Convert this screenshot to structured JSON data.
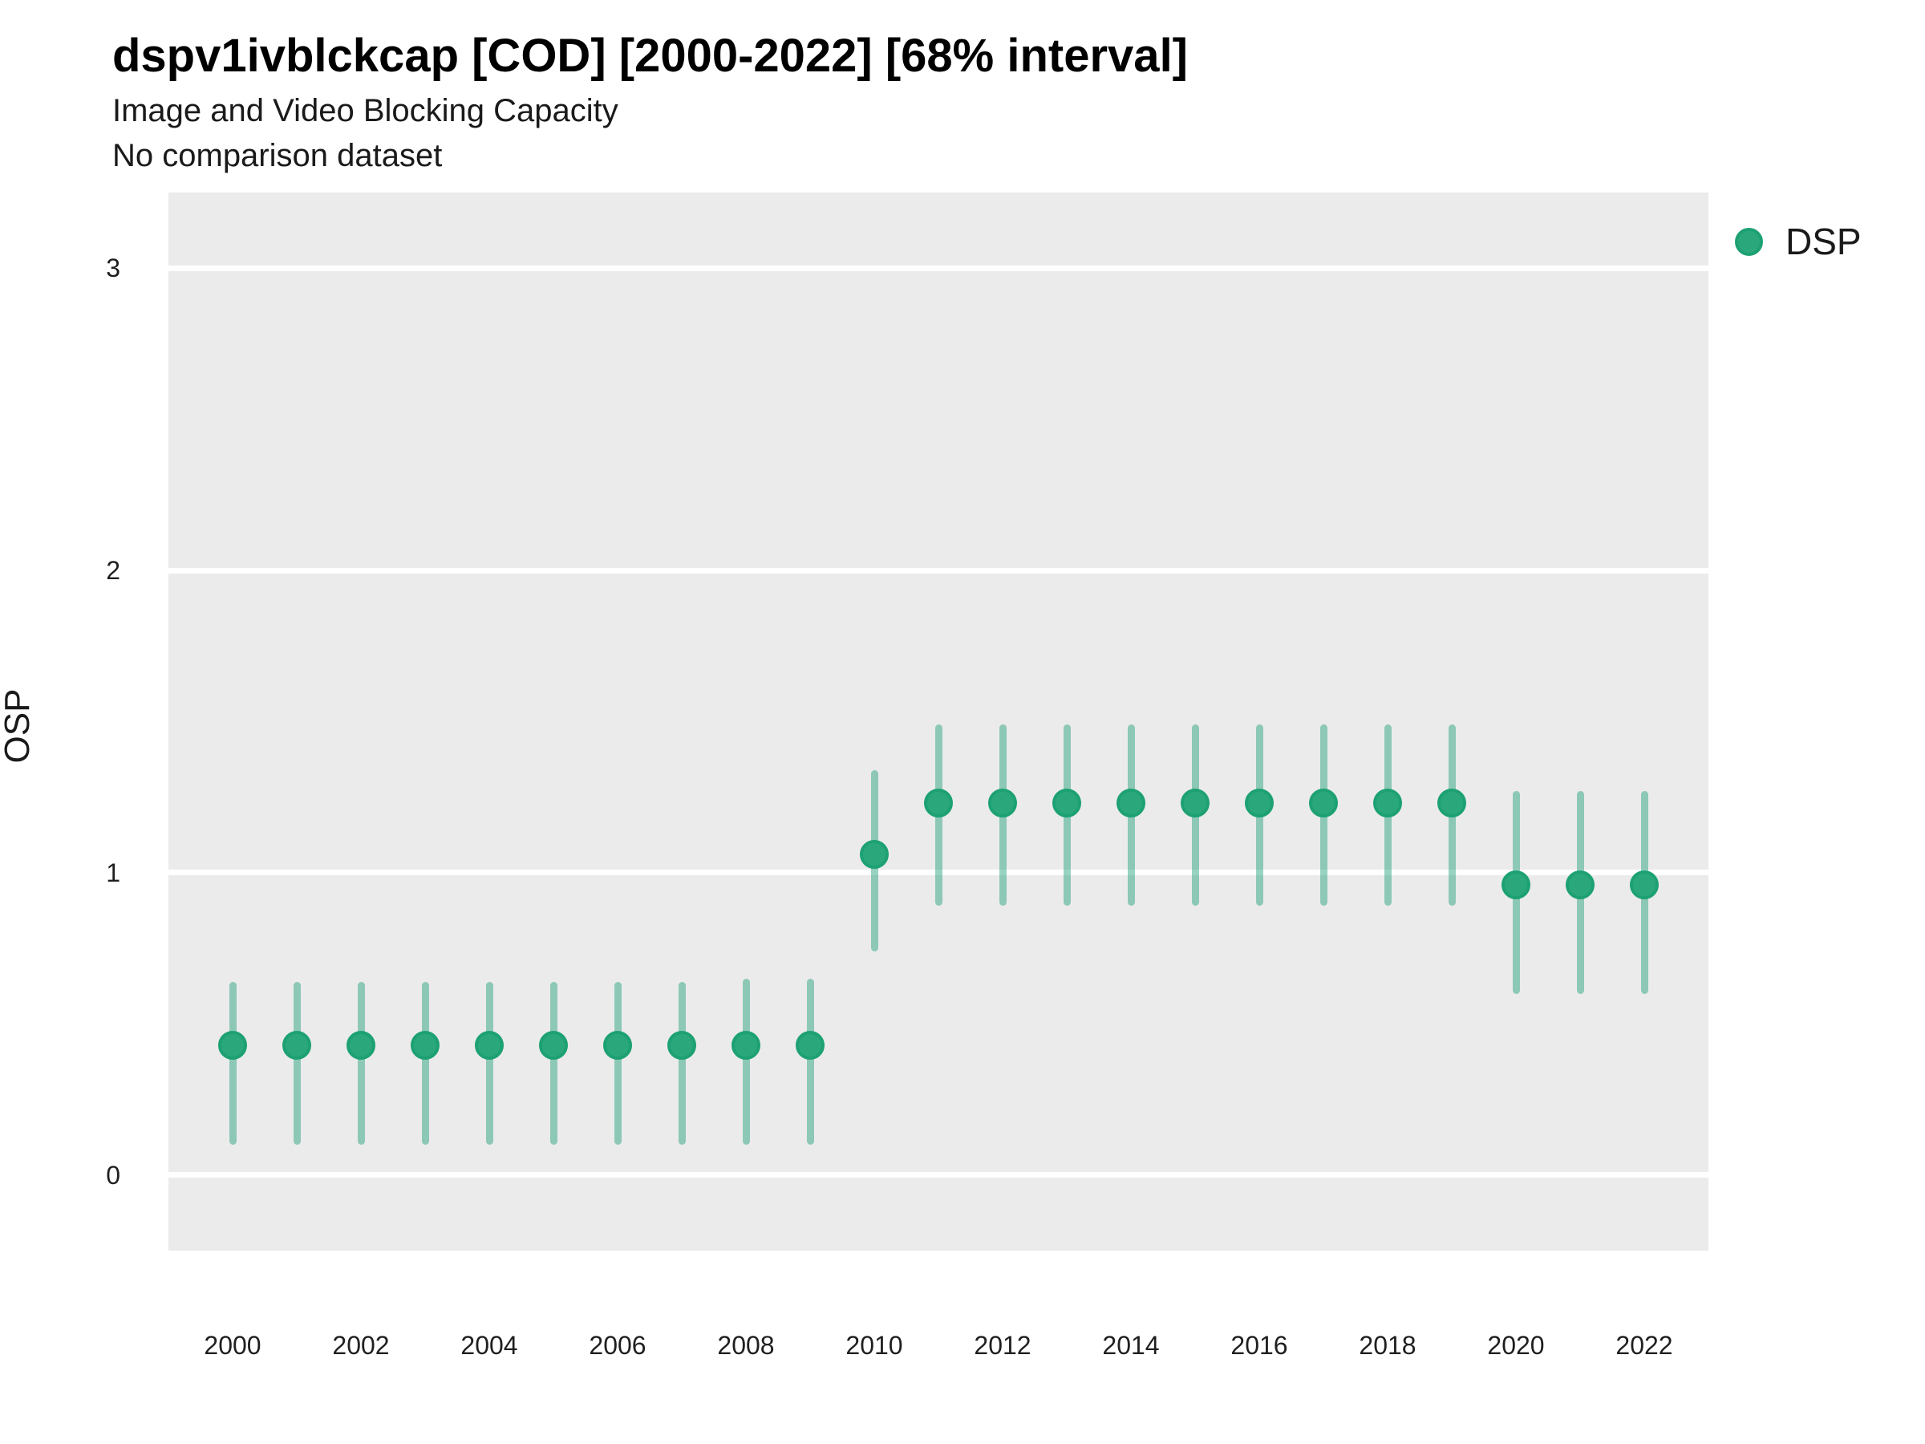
{
  "header": {
    "title": "dspv1ivblckcap [COD] [2000-2022] [68% interval]",
    "subtitle1": "Image and Video Blocking Capacity",
    "subtitle2": "No comparison dataset"
  },
  "legend": {
    "position": "right",
    "items": [
      {
        "label": "DSP",
        "color": "#2aa87c"
      }
    ]
  },
  "colors": {
    "accent_green": "#1b9e77",
    "point_fill": "#2aa87c",
    "point_stroke": "#1da173",
    "interval_stroke": "rgba(27,158,119,0.45)",
    "panel_bg": "#ebebeb",
    "gridline": "#ffffff",
    "text": "#1a1a1a"
  },
  "chart_data": {
    "type": "scatter",
    "subtype": "pointrange-interval",
    "title": "dspv1ivblckcap [COD] [2000-2022] [68% interval]",
    "subtitle": "Image and Video Blocking Capacity / No comparison dataset",
    "interval_label": "68% interval",
    "xlabel": "",
    "ylabel": "OSP",
    "xlim": [
      1999,
      2023
    ],
    "ylim": [
      -0.25,
      3.25
    ],
    "xticks": [
      2000,
      2002,
      2004,
      2006,
      2008,
      2010,
      2012,
      2014,
      2016,
      2018,
      2020,
      2022
    ],
    "yticks": [
      0,
      1,
      2,
      3
    ],
    "grid": "horizontal-major-only",
    "legend_position": "right",
    "series": [
      {
        "name": "DSP",
        "points": [
          {
            "x": 2000,
            "y": 0.43,
            "lo": 0.1,
            "hi": 0.64
          },
          {
            "x": 2001,
            "y": 0.43,
            "lo": 0.1,
            "hi": 0.64
          },
          {
            "x": 2002,
            "y": 0.43,
            "lo": 0.1,
            "hi": 0.64
          },
          {
            "x": 2003,
            "y": 0.43,
            "lo": 0.1,
            "hi": 0.64
          },
          {
            "x": 2004,
            "y": 0.43,
            "lo": 0.1,
            "hi": 0.64
          },
          {
            "x": 2005,
            "y": 0.43,
            "lo": 0.1,
            "hi": 0.64
          },
          {
            "x": 2006,
            "y": 0.43,
            "lo": 0.1,
            "hi": 0.64
          },
          {
            "x": 2007,
            "y": 0.43,
            "lo": 0.1,
            "hi": 0.64
          },
          {
            "x": 2008,
            "y": 0.43,
            "lo": 0.1,
            "hi": 0.65
          },
          {
            "x": 2009,
            "y": 0.43,
            "lo": 0.1,
            "hi": 0.65
          },
          {
            "x": 2010,
            "y": 1.06,
            "lo": 0.74,
            "hi": 1.34
          },
          {
            "x": 2011,
            "y": 1.23,
            "lo": 0.89,
            "hi": 1.49
          },
          {
            "x": 2012,
            "y": 1.23,
            "lo": 0.89,
            "hi": 1.49
          },
          {
            "x": 2013,
            "y": 1.23,
            "lo": 0.89,
            "hi": 1.49
          },
          {
            "x": 2014,
            "y": 1.23,
            "lo": 0.89,
            "hi": 1.49
          },
          {
            "x": 2015,
            "y": 1.23,
            "lo": 0.89,
            "hi": 1.49
          },
          {
            "x": 2016,
            "y": 1.23,
            "lo": 0.89,
            "hi": 1.49
          },
          {
            "x": 2017,
            "y": 1.23,
            "lo": 0.89,
            "hi": 1.49
          },
          {
            "x": 2018,
            "y": 1.23,
            "lo": 0.89,
            "hi": 1.49
          },
          {
            "x": 2019,
            "y": 1.23,
            "lo": 0.89,
            "hi": 1.49
          },
          {
            "x": 2020,
            "y": 0.96,
            "lo": 0.6,
            "hi": 1.27
          },
          {
            "x": 2021,
            "y": 0.96,
            "lo": 0.6,
            "hi": 1.27
          },
          {
            "x": 2022,
            "y": 0.96,
            "lo": 0.6,
            "hi": 1.27
          }
        ]
      }
    ]
  }
}
